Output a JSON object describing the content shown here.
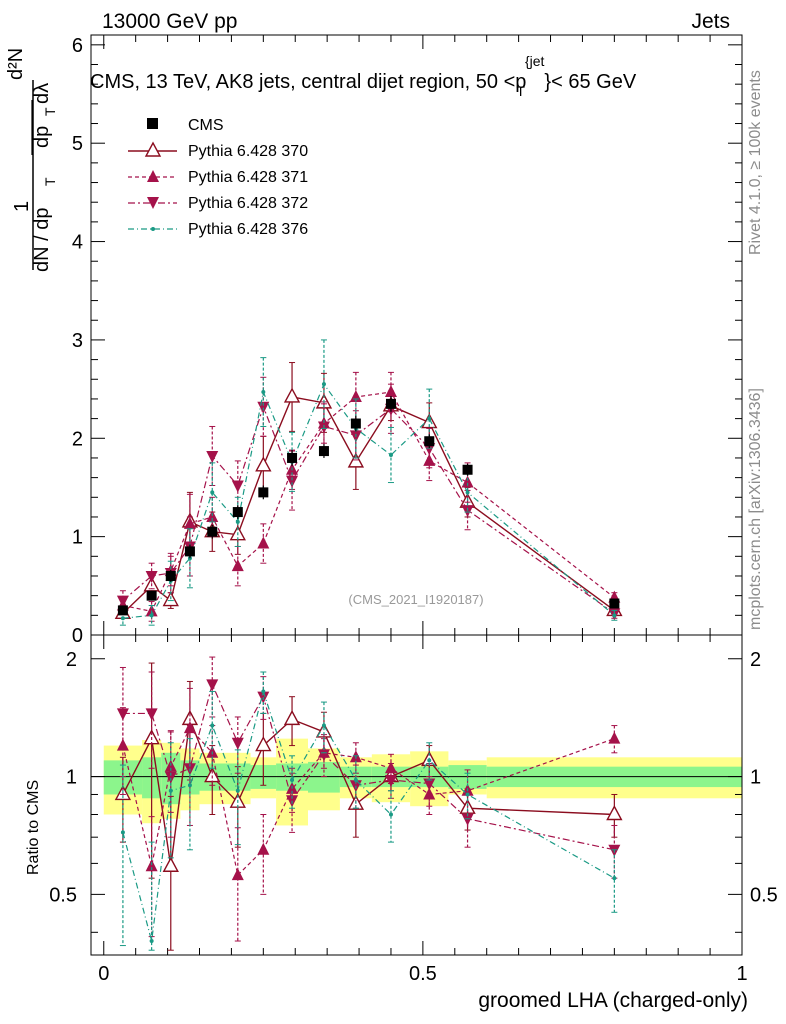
{
  "header": {
    "left": "13000 GeV pp",
    "right": "Jets"
  },
  "side_labels": {
    "top": "Rivet 4.1.0, ≥ 100k events",
    "bottom": "mcplots.cern.ch [arXiv:1306.3436]"
  },
  "watermark": "(CMS_2021_I1920187)",
  "chart_data": {
    "type": "scatter",
    "title": "CMS, 13 TeV, AK8 jets, central dijet region, 50 <p_T^{jet}< 65 GeV",
    "title_parts": {
      "a": "CMS, 13 TeV, AK8 jets, central dijet region, 50 <",
      "p": "p",
      "sub": "T",
      "sup": "{jet",
      "b": "}< 65 GeV"
    },
    "xlabel": "groomed LHA (charged-only)",
    "ylabel": "1/(dN/dp_T) d²N/(dp_T dλ)",
    "ylabel_parts": {
      "a": "1",
      "b": "dN / dp",
      "c": "T",
      "d": "d²N",
      "e": "dp",
      "f": "T",
      "g": "dλ"
    },
    "ratio_ylabel": "Ratio to CMS",
    "xlim": [
      -0.02,
      1.0
    ],
    "ylim": [
      0,
      6.1
    ],
    "ratio_ylim": [
      0.35,
      2.3
    ],
    "xticks": [
      0,
      0.5,
      1
    ],
    "xtick_labels": [
      "0",
      "0.5",
      "1"
    ],
    "yticks": [
      0,
      1,
      2,
      3,
      4,
      5,
      6
    ],
    "ytick_labels": [
      "0",
      "1",
      "2",
      "3",
      "4",
      "5",
      "6"
    ],
    "ratio_yticks": [
      0.5,
      1,
      2
    ],
    "ratio_ytick_labels": [
      "0.5",
      "1",
      "2"
    ],
    "legend_position": "top-left",
    "x_edges": [
      0.0,
      0.06,
      0.09,
      0.12,
      0.15,
      0.19,
      0.23,
      0.27,
      0.32,
      0.37,
      0.42,
      0.48,
      0.54,
      0.6,
      1.0
    ],
    "x": [
      0.03,
      0.075,
      0.105,
      0.135,
      0.17,
      0.21,
      0.25,
      0.295,
      0.345,
      0.395,
      0.45,
      0.51,
      0.57,
      0.8
    ],
    "data": {
      "name": "CMS",
      "values": [
        0.25,
        0.4,
        0.6,
        0.85,
        1.05,
        1.25,
        1.45,
        1.8,
        1.87,
        2.15,
        2.35,
        1.97,
        1.68,
        0.32
      ],
      "errors": [
        0.04,
        0.05,
        0.06,
        0.07,
        0.07,
        0.07,
        0.07,
        0.08,
        0.07,
        0.08,
        0.08,
        0.07,
        0.06,
        0.03
      ],
      "band_inner": [
        0.1,
        0.12,
        0.15,
        0.1,
        0.08,
        0.08,
        0.07,
        0.08,
        0.09,
        0.06,
        0.06,
        0.06,
        0.07,
        0.06
      ],
      "band_outer": [
        0.2,
        0.24,
        0.22,
        0.18,
        0.15,
        0.15,
        0.12,
        0.25,
        0.18,
        0.12,
        0.14,
        0.16,
        0.1,
        0.12
      ]
    },
    "series": [
      {
        "name": "Pythia 6.428 370",
        "color": "#8b0d1f",
        "style": "solid",
        "marker": "triangle-up-open",
        "values": [
          0.22,
          0.5,
          0.35,
          1.15,
          1.05,
          1.02,
          1.72,
          2.42,
          2.36,
          1.76,
          2.33,
          2.16,
          1.35,
          0.25
        ],
        "errors": [
          0.05,
          0.13,
          0.08,
          0.3,
          0.2,
          0.2,
          0.3,
          0.35,
          0.3,
          0.28,
          0.15,
          0.2,
          0.15,
          0.04
        ],
        "ratio": [
          0.9,
          1.25,
          0.59,
          1.4,
          1.0,
          0.86,
          1.2,
          1.4,
          1.3,
          0.85,
          1.0,
          1.1,
          0.83,
          0.8
        ],
        "ratio_err": [
          0.22,
          0.7,
          0.3,
          0.35,
          0.2,
          0.2,
          0.25,
          0.2,
          0.16,
          0.15,
          0.08,
          0.1,
          0.1,
          0.1
        ]
      },
      {
        "name": "Pythia 6.428 371",
        "color": "#a5124a",
        "style": "dashed",
        "marker": "triangle-up",
        "values": [
          0.3,
          0.24,
          0.65,
          1.13,
          1.2,
          0.7,
          0.93,
          1.68,
          2.15,
          2.42,
          2.47,
          1.77,
          1.55,
          0.38
        ],
        "errors": [
          0.08,
          0.1,
          0.15,
          0.3,
          0.2,
          0.2,
          0.2,
          0.2,
          0.2,
          0.25,
          0.2,
          0.2,
          0.2,
          0.05
        ],
        "ratio": [
          1.2,
          0.59,
          1.06,
          1.33,
          1.15,
          0.56,
          0.65,
          0.93,
          1.15,
          1.12,
          1.05,
          0.9,
          0.92,
          1.25
        ],
        "ratio_err": [
          0.3,
          0.2,
          0.25,
          0.35,
          0.2,
          0.18,
          0.15,
          0.12,
          0.1,
          0.1,
          0.09,
          0.1,
          0.12,
          0.1
        ]
      },
      {
        "name": "Pythia 6.428 372",
        "color": "#a5124a",
        "style": "dashdot",
        "marker": "triangle-down",
        "values": [
          0.35,
          0.6,
          0.63,
          0.9,
          1.82,
          1.52,
          2.32,
          1.57,
          2.12,
          2.03,
          2.3,
          1.9,
          1.27,
          0.22
        ],
        "errors": [
          0.1,
          0.13,
          0.2,
          0.3,
          0.3,
          0.25,
          0.3,
          0.3,
          0.25,
          0.25,
          0.25,
          0.2,
          0.2,
          0.05
        ],
        "ratio": [
          1.45,
          1.45,
          1.0,
          1.05,
          1.72,
          1.22,
          1.6,
          0.87,
          1.14,
          0.95,
          0.98,
          0.96,
          0.78,
          0.65
        ],
        "ratio_err": [
          0.45,
          0.4,
          0.3,
          0.3,
          0.3,
          0.2,
          0.2,
          0.15,
          0.14,
          0.12,
          0.1,
          0.12,
          0.12,
          0.1
        ]
      },
      {
        "name": "Pythia 6.428 376",
        "color": "#1a9a85",
        "style": "dashdot",
        "marker": "dot",
        "values": [
          0.17,
          0.2,
          0.55,
          0.78,
          1.45,
          1.15,
          2.47,
          1.76,
          2.55,
          2.1,
          1.83,
          2.2,
          1.45,
          0.2
        ],
        "errors": [
          0.07,
          0.1,
          0.2,
          0.3,
          0.3,
          0.25,
          0.35,
          0.3,
          0.45,
          0.3,
          0.28,
          0.3,
          0.2,
          0.05
        ],
        "ratio": [
          0.72,
          0.38,
          0.92,
          0.95,
          1.35,
          0.92,
          1.65,
          0.98,
          1.35,
          0.98,
          0.8,
          1.1,
          0.9,
          0.55
        ],
        "ratio_err": [
          0.35,
          0.3,
          0.3,
          0.3,
          0.3,
          0.25,
          0.2,
          0.15,
          0.2,
          0.15,
          0.12,
          0.12,
          0.12,
          0.1
        ]
      }
    ]
  }
}
